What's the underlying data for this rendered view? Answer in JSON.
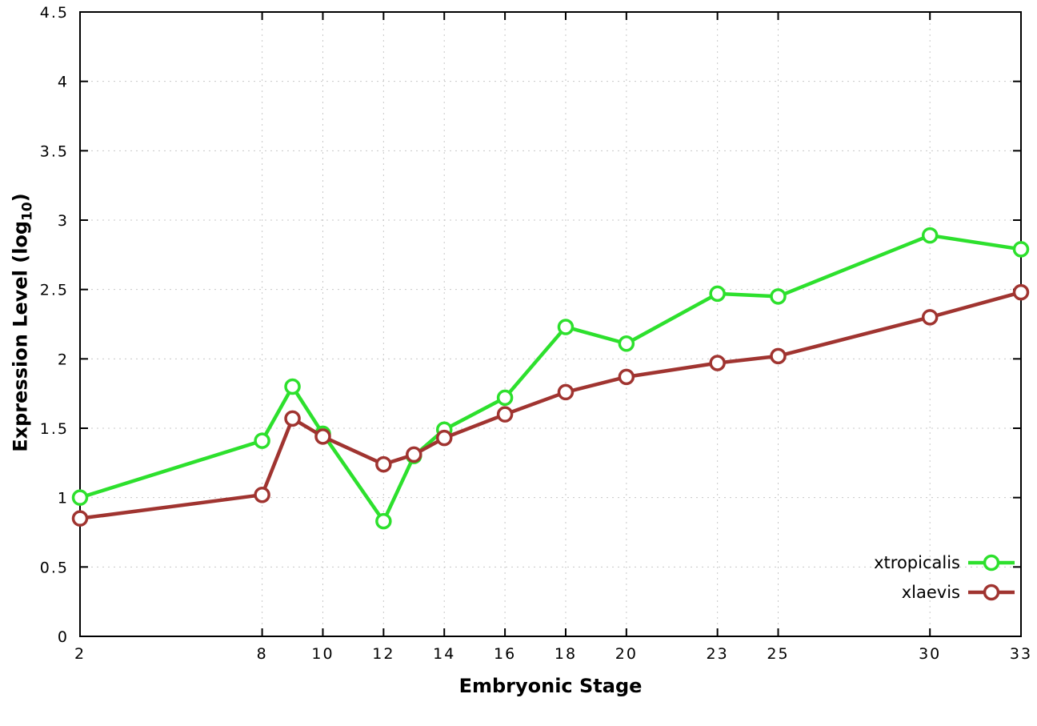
{
  "chart_data": {
    "type": "line",
    "x": [
      2,
      8,
      9,
      10,
      12,
      13,
      14,
      16,
      18,
      20,
      23,
      25,
      30,
      33
    ],
    "series": [
      {
        "name": "xtropicalis",
        "color": "#2de02d",
        "values": [
          1.0,
          1.41,
          1.8,
          1.46,
          0.83,
          1.3,
          1.49,
          1.72,
          2.23,
          2.11,
          2.47,
          2.45,
          2.89,
          2.79
        ]
      },
      {
        "name": "xlaevis",
        "color": "#a03430",
        "values": [
          0.85,
          1.02,
          1.57,
          1.44,
          1.24,
          1.31,
          1.43,
          1.6,
          1.76,
          1.87,
          1.97,
          2.02,
          2.3,
          2.48
        ]
      }
    ],
    "title": "",
    "xlabel": "Embryonic Stage",
    "ylabel": "Expression Level (log10)",
    "ylabel_parts": {
      "main": "Expression Level (log",
      "sub": "10",
      "end": ")"
    },
    "xlim": [
      2,
      33
    ],
    "ylim": [
      0,
      4.5
    ],
    "xticks": [
      2,
      8,
      10,
      12,
      14,
      16,
      18,
      20,
      23,
      25,
      30,
      33
    ],
    "xtick_labels": [
      "2",
      "8",
      "10",
      "12",
      "14",
      "16",
      "18",
      "20",
      "23",
      "25",
      "30",
      "33"
    ],
    "yticks": [
      0,
      0.5,
      1,
      1.5,
      2,
      2.5,
      3,
      3.5,
      4,
      4.5
    ],
    "ytick_labels": [
      "0",
      "0.5",
      "1",
      "1.5",
      "2",
      "2.5",
      "3",
      "3.5",
      "4",
      "4.5"
    ],
    "grid": true,
    "grid_style": "dotted",
    "grid_color": "#c8c8c8",
    "axis_color": "#000000",
    "background": "#ffffff",
    "legend_position": "bottom-right",
    "legend_entries": [
      "xtropicalis",
      "xlaevis"
    ],
    "marker": "open-circle"
  }
}
